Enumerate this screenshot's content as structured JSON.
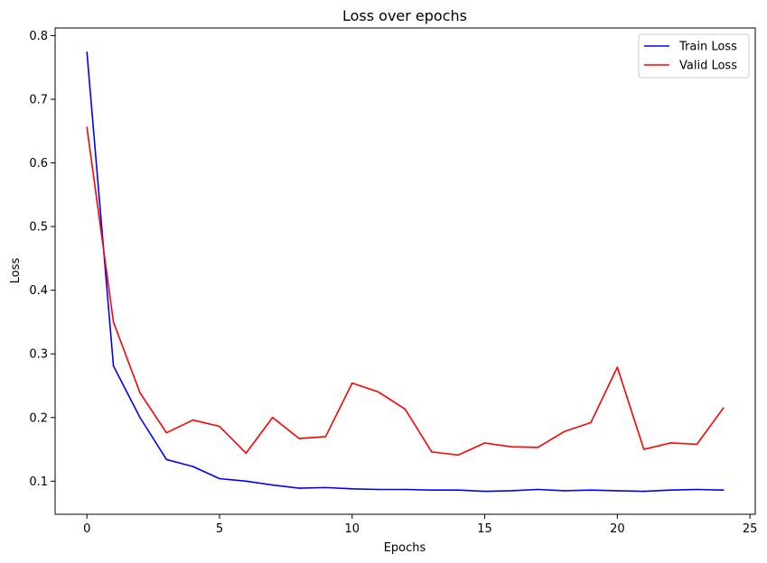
{
  "chart_data": {
    "type": "line",
    "title": "Loss over epochs",
    "xlabel": "Epochs",
    "ylabel": "Loss",
    "xlim": [
      -1.2,
      25.2
    ],
    "ylim": [
      0.048,
      0.812
    ],
    "x_ticks": [
      0,
      5,
      10,
      15,
      20,
      25
    ],
    "y_ticks": [
      0.1,
      0.2,
      0.3,
      0.4,
      0.5,
      0.6,
      0.7,
      0.8
    ],
    "x_tick_labels": [
      "0",
      "5",
      "10",
      "15",
      "20",
      "25"
    ],
    "y_tick_labels": [
      "0.1",
      "0.2",
      "0.3",
      "0.4",
      "0.5",
      "0.6",
      "0.7",
      "0.8"
    ],
    "grid": false,
    "legend_position": "top-right",
    "x": [
      0,
      1,
      2,
      3,
      4,
      5,
      6,
      7,
      8,
      9,
      10,
      11,
      12,
      13,
      14,
      15,
      16,
      17,
      18,
      19,
      20,
      21,
      22,
      23,
      24
    ],
    "series": [
      {
        "name": "Train Loss",
        "color": "#0000ff",
        "values": [
          0.774,
          0.281,
          0.2,
          0.134,
          0.123,
          0.104,
          0.1,
          0.094,
          0.089,
          0.09,
          0.088,
          0.087,
          0.087,
          0.086,
          0.086,
          0.084,
          0.085,
          0.087,
          0.085,
          0.086,
          0.085,
          0.084,
          0.086,
          0.087,
          0.086
        ]
      },
      {
        "name": "Valid Loss",
        "color": "#ff0000",
        "values": [
          0.656,
          0.35,
          0.239,
          0.176,
          0.196,
          0.186,
          0.144,
          0.2,
          0.167,
          0.17,
          0.254,
          0.24,
          0.213,
          0.146,
          0.141,
          0.16,
          0.154,
          0.153,
          0.178,
          0.192,
          0.279,
          0.15,
          0.16,
          0.158,
          0.215
        ]
      }
    ]
  }
}
